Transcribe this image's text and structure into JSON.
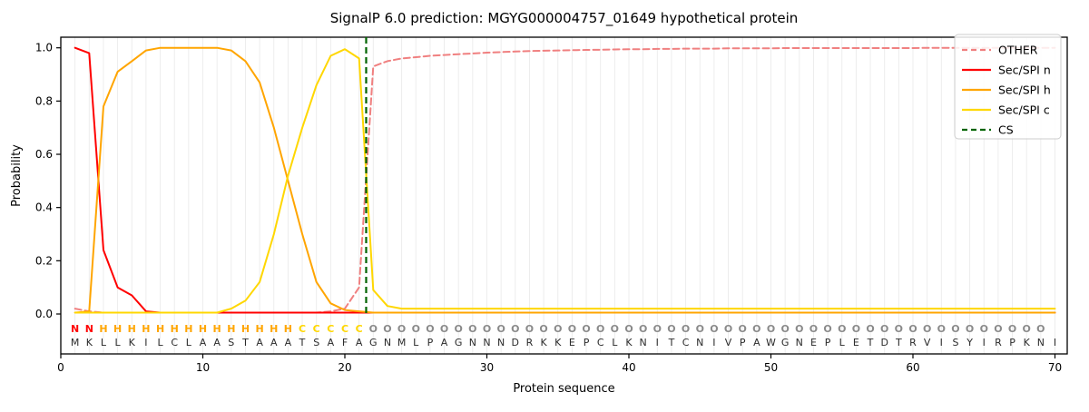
{
  "title": "SignalP 6.0 prediction: MGYG000004757_01649 hypothetical protein",
  "chart_data": {
    "type": "line",
    "title": "SignalP 6.0 prediction: MGYG000004757_01649 hypothetical protein",
    "xlabel": "Protein sequence",
    "ylabel": "Probability",
    "xlim": [
      0,
      71
    ],
    "ylim": [
      -0.15,
      1.04
    ],
    "x_ticks": [
      0,
      10,
      20,
      30,
      40,
      50,
      60,
      70
    ],
    "x_tick_labels": [
      "0",
      "10",
      "20",
      "30",
      "40",
      "50",
      "60",
      "70"
    ],
    "y_ticks": [
      0.0,
      0.2,
      0.4,
      0.6,
      0.8,
      1.0
    ],
    "y_tick_labels": [
      "0.0",
      "0.2",
      "0.4",
      "0.6",
      "0.8",
      "1.0"
    ],
    "grid": "vertical-per-residue",
    "legend_position": "upper-right",
    "sequence": "MKLLKILCLAASTAAATSAFAGNMLPAGNNNDRKKEPCLKNITCNIVPAWGNEPLETDTRVISYIRPKNI",
    "residue_labels": "NNHHHHHHHHHHHHHHCCCCCOOOOOOOOOOOOOOOOOOOOOOOOOOOOOOOOOOOOOOOOOOOOOOOO",
    "label_colors": {
      "N": "#ff0000",
      "H": "#ffa500",
      "C": "#ffd700",
      "O": "#8a8a8a"
    },
    "sequence_color": "#2b2b2b",
    "grid_color": "#ebebeb",
    "axis_color": "#000000",
    "cs": {
      "label": "CS",
      "position": 21.5,
      "color": "#006400",
      "style": "dashed"
    },
    "series": [
      {
        "name": "OTHER",
        "color": "#f08080",
        "style": "dashed",
        "values": [
          0.02,
          0.01,
          0.005,
          0.005,
          0.005,
          0.005,
          0.005,
          0.005,
          0.005,
          0.005,
          0.005,
          0.005,
          0.005,
          0.005,
          0.005,
          0.005,
          0.005,
          0.005,
          0.01,
          0.02,
          0.1,
          0.93,
          0.95,
          0.96,
          0.965,
          0.97,
          0.973,
          0.976,
          0.979,
          0.982,
          0.984,
          0.986,
          0.988,
          0.989,
          0.99,
          0.991,
          0.992,
          0.993,
          0.994,
          0.995,
          0.995,
          0.996,
          0.996,
          0.997,
          0.997,
          0.997,
          0.998,
          0.998,
          0.998,
          0.998,
          0.999,
          0.999,
          0.999,
          0.999,
          0.999,
          0.999,
          0.999,
          0.999,
          0.999,
          0.999,
          1,
          1,
          1,
          1,
          1,
          1,
          1,
          1,
          1,
          1
        ]
      },
      {
        "name": "Sec/SPI n",
        "color": "#ff0000",
        "style": "solid",
        "values": [
          1,
          0.98,
          0.24,
          0.1,
          0.07,
          0.01,
          0.005,
          0.005,
          0.005,
          0.005,
          0.005,
          0.005,
          0.005,
          0.005,
          0.005,
          0.005,
          0.005,
          0.005,
          0.005,
          0.005,
          0.005,
          0.005,
          0.005,
          0.005,
          0.005,
          0.005,
          0.005,
          0.005,
          0.005,
          0.005,
          0.005,
          0.005,
          0.005,
          0.005,
          0.005,
          0.005,
          0.005,
          0.005,
          0.005,
          0.005,
          0.005,
          0.005,
          0.005,
          0.005,
          0.005,
          0.005,
          0.005,
          0.005,
          0.005,
          0.005,
          0.005,
          0.005,
          0.005,
          0.005,
          0.005,
          0.005,
          0.005,
          0.005,
          0.005,
          0.005,
          0.005,
          0.005,
          0.005,
          0.005,
          0.005,
          0.005,
          0.005,
          0.005,
          0.005,
          0.005
        ]
      },
      {
        "name": "Sec/SPI h",
        "color": "#ffa500",
        "style": "solid",
        "values": [
          0.005,
          0.01,
          0.78,
          0.91,
          0.95,
          0.99,
          1,
          1,
          1,
          1,
          1,
          0.99,
          0.95,
          0.87,
          0.7,
          0.5,
          0.3,
          0.12,
          0.04,
          0.015,
          0.01,
          0.005,
          0.005,
          0.005,
          0.005,
          0.005,
          0.005,
          0.005,
          0.005,
          0.005,
          0.005,
          0.005,
          0.005,
          0.005,
          0.005,
          0.005,
          0.005,
          0.005,
          0.005,
          0.005,
          0.005,
          0.005,
          0.005,
          0.005,
          0.005,
          0.005,
          0.005,
          0.005,
          0.005,
          0.005,
          0.005,
          0.005,
          0.005,
          0.005,
          0.005,
          0.005,
          0.005,
          0.005,
          0.005,
          0.005,
          0.005,
          0.005,
          0.005,
          0.005,
          0.005,
          0.005,
          0.005,
          0.005,
          0.005,
          0.005
        ]
      },
      {
        "name": "Sec/SPI c",
        "color": "#ffd700",
        "style": "solid",
        "values": [
          0.005,
          0.005,
          0.005,
          0.005,
          0.005,
          0.005,
          0.005,
          0.005,
          0.005,
          0.005,
          0.005,
          0.02,
          0.05,
          0.12,
          0.3,
          0.52,
          0.7,
          0.86,
          0.97,
          0.995,
          0.96,
          0.09,
          0.03,
          0.02,
          0.02,
          0.02,
          0.02,
          0.02,
          0.02,
          0.02,
          0.02,
          0.02,
          0.02,
          0.02,
          0.02,
          0.02,
          0.02,
          0.02,
          0.02,
          0.02,
          0.02,
          0.02,
          0.02,
          0.02,
          0.02,
          0.02,
          0.02,
          0.02,
          0.02,
          0.02,
          0.02,
          0.02,
          0.02,
          0.02,
          0.02,
          0.02,
          0.02,
          0.02,
          0.02,
          0.02,
          0.02,
          0.02,
          0.02,
          0.02,
          0.02,
          0.02,
          0.02,
          0.02,
          0.02,
          0.02
        ]
      }
    ]
  }
}
